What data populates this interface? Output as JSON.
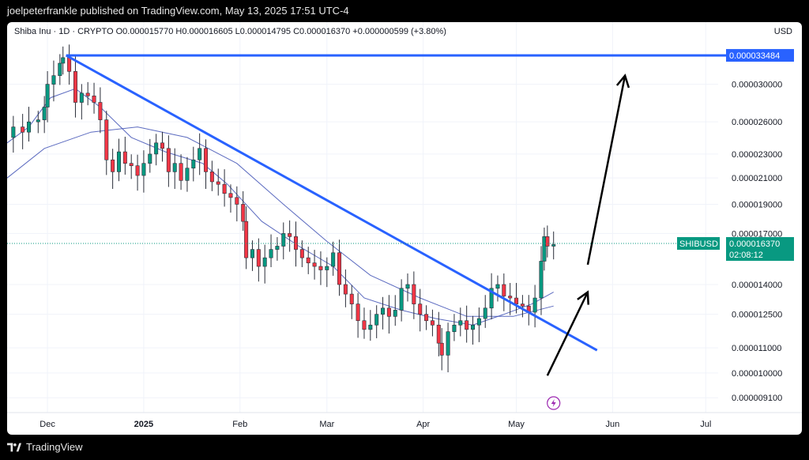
{
  "header": {
    "publish_text": "joelpeterfrankle published on TradingView.com, May 13, 2025 17:51 UTC-4"
  },
  "legend": {
    "text": "Shiba Inu · 1D · CRYPTO  O0.000015770  H0.000016605  L0.000014795  C0.000016370  +0.000000599 (+3.80%)"
  },
  "currency": "USD",
  "footer": {
    "brand": "TradingView"
  },
  "colors": {
    "up": "#089981",
    "down": "#f23645",
    "trendline": "#2962ff",
    "ma": "#3f51b5",
    "arrow": "#000000"
  },
  "chart_data": {
    "type": "candlestick",
    "symbol": "SHIBUSD",
    "interval": "1D",
    "yscale": "log",
    "ylim": [
      8.6e-06,
      3.8e-05
    ],
    "price_ticks": [
      "0.000030000",
      "0.000026000",
      "0.000023000",
      "0.000021000",
      "0.000019000",
      "0.000017000",
      "0.000014000",
      "0.000012500",
      "0.000011000",
      "0.000010000",
      "0.000009100"
    ],
    "x_ticks": [
      {
        "date": "2024-12-01",
        "label": "Dec"
      },
      {
        "date": "2025-01-01",
        "label": "2025"
      },
      {
        "date": "2025-02-01",
        "label": "Feb"
      },
      {
        "date": "2025-03-01",
        "label": "Mar"
      },
      {
        "date": "2025-04-01",
        "label": "Apr"
      },
      {
        "date": "2025-05-01",
        "label": "May"
      },
      {
        "date": "2025-06-01",
        "label": "Jun"
      },
      {
        "date": "2025-07-01",
        "label": "Jul"
      }
    ],
    "xlim": [
      "2024-11-18",
      "2025-07-05"
    ],
    "series_close": [
      [
        "2024-11-18",
        2.45e-05
      ],
      [
        "2024-11-20",
        2.55e-05
      ],
      [
        "2024-11-23",
        2.5e-05
      ],
      [
        "2024-11-25",
        2.6e-05
      ],
      [
        "2024-11-28",
        2.62e-05
      ],
      [
        "2024-11-30",
        2.75e-05
      ],
      [
        "2024-12-01",
        3e-05
      ],
      [
        "2024-12-03",
        3.1e-05
      ],
      [
        "2024-12-05",
        3.25e-05
      ],
      [
        "2024-12-06",
        3.32e-05
      ],
      [
        "2024-12-08",
        3.15e-05
      ],
      [
        "2024-12-10",
        2.8e-05
      ],
      [
        "2024-12-12",
        2.9e-05
      ],
      [
        "2024-12-14",
        2.87e-05
      ],
      [
        "2024-12-16",
        2.8e-05
      ],
      [
        "2024-12-18",
        2.62e-05
      ],
      [
        "2024-12-20",
        2.25e-05
      ],
      [
        "2024-12-22",
        2.15e-05
      ],
      [
        "2024-12-24",
        2.32e-05
      ],
      [
        "2024-12-26",
        2.22e-05
      ],
      [
        "2024-12-28",
        2.2e-05
      ],
      [
        "2024-12-30",
        2.12e-05
      ],
      [
        "2025-01-01",
        2.22e-05
      ],
      [
        "2025-01-03",
        2.3e-05
      ],
      [
        "2025-01-05",
        2.4e-05
      ],
      [
        "2025-01-07",
        2.35e-05
      ],
      [
        "2025-01-09",
        2.15e-05
      ],
      [
        "2025-01-11",
        2.22e-05
      ],
      [
        "2025-01-13",
        2.08e-05
      ],
      [
        "2025-01-15",
        2.18e-05
      ],
      [
        "2025-01-17",
        2.25e-05
      ],
      [
        "2025-01-19",
        2.35e-05
      ],
      [
        "2025-01-21",
        2.15e-05
      ],
      [
        "2025-01-23",
        2.07e-05
      ],
      [
        "2025-01-25",
        2.05e-05
      ],
      [
        "2025-01-27",
        1.98e-05
      ],
      [
        "2025-01-29",
        1.95e-05
      ],
      [
        "2025-01-31",
        1.9e-05
      ],
      [
        "2025-02-02",
        1.78e-05
      ],
      [
        "2025-02-03",
        1.55e-05
      ],
      [
        "2025-02-05",
        1.6e-05
      ],
      [
        "2025-02-07",
        1.5e-05
      ],
      [
        "2025-02-09",
        1.55e-05
      ],
      [
        "2025-02-11",
        1.6e-05
      ],
      [
        "2025-02-13",
        1.62e-05
      ],
      [
        "2025-02-15",
        1.7e-05
      ],
      [
        "2025-02-17",
        1.68e-05
      ],
      [
        "2025-02-19",
        1.6e-05
      ],
      [
        "2025-02-21",
        1.55e-05
      ],
      [
        "2025-02-23",
        1.52e-05
      ],
      [
        "2025-02-25",
        1.5e-05
      ],
      [
        "2025-02-27",
        1.48e-05
      ],
      [
        "2025-03-01",
        1.5e-05
      ],
      [
        "2025-03-03",
        1.58e-05
      ],
      [
        "2025-03-05",
        1.4e-05
      ],
      [
        "2025-03-07",
        1.35e-05
      ],
      [
        "2025-03-09",
        1.3e-05
      ],
      [
        "2025-03-11",
        1.22e-05
      ],
      [
        "2025-03-13",
        1.18e-05
      ],
      [
        "2025-03-15",
        1.2e-05
      ],
      [
        "2025-03-17",
        1.25e-05
      ],
      [
        "2025-03-19",
        1.28e-05
      ],
      [
        "2025-03-21",
        1.24e-05
      ],
      [
        "2025-03-23",
        1.27e-05
      ],
      [
        "2025-03-25",
        1.38e-05
      ],
      [
        "2025-03-27",
        1.4e-05
      ],
      [
        "2025-03-29",
        1.3e-05
      ],
      [
        "2025-03-31",
        1.25e-05
      ],
      [
        "2025-04-02",
        1.22e-05
      ],
      [
        "2025-04-04",
        1.2e-05
      ],
      [
        "2025-04-06",
        1.12e-05
      ],
      [
        "2025-04-07",
        1.07e-05
      ],
      [
        "2025-04-09",
        1.17e-05
      ],
      [
        "2025-04-11",
        1.2e-05
      ],
      [
        "2025-04-13",
        1.22e-05
      ],
      [
        "2025-04-15",
        1.18e-05
      ],
      [
        "2025-04-17",
        1.2e-05
      ],
      [
        "2025-04-19",
        1.23e-05
      ],
      [
        "2025-04-21",
        1.28e-05
      ],
      [
        "2025-04-23",
        1.38e-05
      ],
      [
        "2025-04-25",
        1.4e-05
      ],
      [
        "2025-04-27",
        1.34e-05
      ],
      [
        "2025-04-29",
        1.33e-05
      ],
      [
        "2025-05-01",
        1.3e-05
      ],
      [
        "2025-05-03",
        1.29e-05
      ],
      [
        "2025-05-05",
        1.26e-05
      ],
      [
        "2025-05-07",
        1.33e-05
      ],
      [
        "2025-05-09",
        1.53e-05
      ],
      [
        "2025-05-10",
        1.68e-05
      ],
      [
        "2025-05-11",
        1.62e-05
      ],
      [
        "2025-05-13",
        1.63e-05
      ]
    ],
    "moving_averages": [
      {
        "values": [
          [
            "2024-11-18",
            2.4e-05
          ],
          [
            "2024-11-25",
            2.55e-05
          ],
          [
            "2024-12-02",
            2.85e-05
          ],
          [
            "2024-12-10",
            2.95e-05
          ],
          [
            "2024-12-18",
            2.75e-05
          ],
          [
            "2024-12-28",
            2.45e-05
          ],
          [
            "2025-01-08",
            2.32e-05
          ],
          [
            "2025-01-20",
            2.22e-05
          ],
          [
            "2025-01-28",
            2.05e-05
          ],
          [
            "2025-02-08",
            1.78e-05
          ],
          [
            "2025-02-20",
            1.62e-05
          ],
          [
            "2025-03-03",
            1.5e-05
          ],
          [
            "2025-03-13",
            1.33e-05
          ],
          [
            "2025-03-25",
            1.27e-05
          ],
          [
            "2025-04-05",
            1.23e-05
          ],
          [
            "2025-04-17",
            1.2e-05
          ],
          [
            "2025-04-27",
            1.25e-05
          ],
          [
            "2025-05-06",
            1.3e-05
          ],
          [
            "2025-05-13",
            1.36e-05
          ]
        ]
      },
      {
        "values": [
          [
            "2024-11-18",
            2.1e-05
          ],
          [
            "2024-11-30",
            2.35e-05
          ],
          [
            "2024-12-15",
            2.5e-05
          ],
          [
            "2024-12-30",
            2.55e-05
          ],
          [
            "2025-01-15",
            2.45e-05
          ],
          [
            "2025-01-31",
            2.22e-05
          ],
          [
            "2025-02-15",
            1.9e-05
          ],
          [
            "2025-03-01",
            1.65e-05
          ],
          [
            "2025-03-15",
            1.45e-05
          ],
          [
            "2025-03-31",
            1.33e-05
          ],
          [
            "2025-04-15",
            1.24e-05
          ],
          [
            "2025-04-30",
            1.24e-05
          ],
          [
            "2025-05-13",
            1.29e-05
          ]
        ]
      }
    ],
    "annotations": {
      "horizontal_line": {
        "price": 3.3484e-05,
        "label": "0.000033484",
        "start_date": "2024-12-07"
      },
      "trendline": {
        "from": [
          "2024-12-07",
          3.3484e-05
        ],
        "to": [
          "2025-05-27",
          1.09e-05
        ]
      },
      "arrows": [
        {
          "from": [
            "2025-05-11",
            9.9e-06
          ],
          "to": [
            "2025-05-24",
            1.36e-05
          ]
        },
        {
          "from": [
            "2025-05-24",
            1.51e-05
          ],
          "to": [
            "2025-06-05",
            3.1e-05
          ]
        }
      ]
    },
    "last_price": {
      "symbol_label": "SHIBUSD",
      "price_label": "0.000016370",
      "countdown": "02:08:12",
      "price": 1.637e-05
    }
  }
}
